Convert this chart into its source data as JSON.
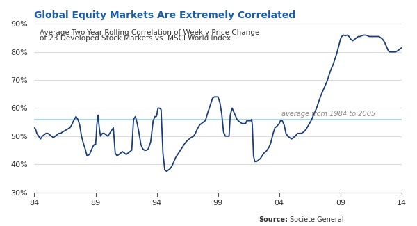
{
  "title": "Global Equity Markets Are Extremely Correlated",
  "title_color": "#1a5ca8",
  "annotation_line1": "Average Two-Year Rolling Correlation of Weekly Price Change",
  "annotation_line2": "of 23 Developed Stock Markets vs. MSCI World Index",
  "avg_label": "average from 1984 to 2005",
  "avg_value": 0.558,
  "line_color": "#1a3d7a",
  "avg_line_color": "#a8d8ea",
  "background_color": "#ffffff",
  "xlim": [
    1984,
    2014
  ],
  "ylim": [
    0.3,
    0.9
  ],
  "xtick_values": [
    1984,
    1989,
    1994,
    1999,
    2004,
    2009,
    2014
  ],
  "xtick_labels": [
    "84",
    "89",
    "94",
    "99",
    "04",
    "09",
    "14"
  ],
  "yticks": [
    0.3,
    0.4,
    0.5,
    0.6,
    0.7,
    0.8,
    0.9
  ],
  "ytick_labels": [
    "30%",
    "40%",
    "50%",
    "60%",
    "70%",
    "80%",
    "90%"
  ],
  "series_x": [
    1984.0,
    1984.1,
    1984.2,
    1984.35,
    1984.5,
    1984.65,
    1984.8,
    1984.95,
    1985.1,
    1985.25,
    1985.4,
    1985.55,
    1985.7,
    1985.85,
    1986.0,
    1986.15,
    1986.3,
    1986.5,
    1986.7,
    1986.9,
    1987.05,
    1987.2,
    1987.4,
    1987.55,
    1987.7,
    1987.85,
    1988.0,
    1988.15,
    1988.3,
    1988.5,
    1988.65,
    1988.8,
    1988.9,
    1988.98,
    1989.0,
    1989.05,
    1989.1,
    1989.2,
    1989.3,
    1989.4,
    1989.55,
    1989.7,
    1989.85,
    1990.0,
    1990.15,
    1990.3,
    1990.45,
    1990.6,
    1990.75,
    1990.9,
    1991.05,
    1991.2,
    1991.35,
    1991.5,
    1991.65,
    1991.8,
    1991.95,
    1992.1,
    1992.25,
    1992.4,
    1992.55,
    1992.7,
    1992.85,
    1993.0,
    1993.15,
    1993.3,
    1993.5,
    1993.7,
    1993.85,
    1993.95,
    1994.0,
    1994.05,
    1994.1,
    1994.2,
    1994.35,
    1994.5,
    1994.65,
    1994.8,
    1994.95,
    1995.1,
    1995.25,
    1995.4,
    1995.55,
    1995.7,
    1995.85,
    1996.0,
    1996.15,
    1996.3,
    1996.5,
    1996.65,
    1996.8,
    1997.0,
    1997.15,
    1997.3,
    1997.5,
    1997.65,
    1997.8,
    1997.95,
    1998.0,
    1998.1,
    1998.25,
    1998.4,
    1998.55,
    1998.7,
    1998.85,
    1999.0,
    1999.15,
    1999.3,
    1999.45,
    1999.6,
    1999.75,
    1999.9,
    2000.0,
    2000.15,
    2000.3,
    2000.45,
    2000.55,
    2000.65,
    2000.8,
    2000.95,
    2001.1,
    2001.25,
    2001.35,
    2001.45,
    2001.55,
    2001.7,
    2001.75,
    2001.8,
    2001.9,
    2002.0,
    2002.15,
    2002.3,
    2002.45,
    2002.6,
    2002.75,
    2002.9,
    2003.0,
    2003.15,
    2003.3,
    2003.5,
    2003.65,
    2003.8,
    2003.9,
    2004.0,
    2004.1,
    2004.25,
    2004.4,
    2004.55,
    2004.7,
    2004.85,
    2005.0,
    2005.15,
    2005.3,
    2005.5,
    2005.65,
    2005.8,
    2006.0,
    2006.2,
    2006.4,
    2006.6,
    2006.75,
    2006.9,
    2007.05,
    2007.2,
    2007.4,
    2007.6,
    2007.75,
    2007.9,
    2008.05,
    2008.2,
    2008.4,
    2008.55,
    2008.7,
    2008.85,
    2009.0,
    2009.1,
    2009.25,
    2009.4,
    2009.55,
    2009.7,
    2009.85,
    2010.0,
    2010.15,
    2010.3,
    2010.45,
    2010.6,
    2010.75,
    2010.9,
    2011.05,
    2011.2,
    2011.35,
    2011.5,
    2011.65,
    2011.8,
    2011.9,
    2012.0,
    2012.15,
    2012.3,
    2012.45,
    2012.6,
    2012.75,
    2012.9,
    2013.0,
    2013.15,
    2013.3,
    2013.5,
    2013.7,
    2013.85,
    2014.0
  ],
  "series_y": [
    0.53,
    0.525,
    0.51,
    0.5,
    0.49,
    0.5,
    0.505,
    0.51,
    0.51,
    0.505,
    0.5,
    0.495,
    0.5,
    0.505,
    0.51,
    0.51,
    0.515,
    0.52,
    0.525,
    0.53,
    0.54,
    0.555,
    0.57,
    0.56,
    0.54,
    0.5,
    0.475,
    0.455,
    0.43,
    0.435,
    0.45,
    0.465,
    0.47,
    0.47,
    0.47,
    0.5,
    0.54,
    0.575,
    0.53,
    0.5,
    0.51,
    0.51,
    0.505,
    0.5,
    0.51,
    0.52,
    0.53,
    0.44,
    0.43,
    0.435,
    0.44,
    0.445,
    0.44,
    0.435,
    0.44,
    0.445,
    0.45,
    0.56,
    0.57,
    0.545,
    0.51,
    0.47,
    0.455,
    0.45,
    0.45,
    0.455,
    0.48,
    0.555,
    0.57,
    0.57,
    0.575,
    0.59,
    0.6,
    0.6,
    0.595,
    0.44,
    0.38,
    0.375,
    0.38,
    0.385,
    0.395,
    0.41,
    0.425,
    0.435,
    0.445,
    0.455,
    0.465,
    0.475,
    0.485,
    0.49,
    0.495,
    0.5,
    0.51,
    0.525,
    0.54,
    0.545,
    0.55,
    0.555,
    0.56,
    0.575,
    0.595,
    0.615,
    0.635,
    0.64,
    0.64,
    0.64,
    0.62,
    0.58,
    0.515,
    0.5,
    0.5,
    0.5,
    0.575,
    0.6,
    0.585,
    0.57,
    0.56,
    0.555,
    0.55,
    0.545,
    0.545,
    0.545,
    0.555,
    0.555,
    0.555,
    0.555,
    0.56,
    0.54,
    0.43,
    0.41,
    0.41,
    0.415,
    0.42,
    0.43,
    0.44,
    0.445,
    0.45,
    0.46,
    0.475,
    0.51,
    0.53,
    0.535,
    0.54,
    0.545,
    0.555,
    0.555,
    0.54,
    0.51,
    0.5,
    0.495,
    0.49,
    0.495,
    0.5,
    0.51,
    0.51,
    0.51,
    0.515,
    0.525,
    0.54,
    0.555,
    0.57,
    0.585,
    0.6,
    0.62,
    0.645,
    0.665,
    0.68,
    0.695,
    0.715,
    0.735,
    0.755,
    0.775,
    0.795,
    0.82,
    0.845,
    0.855,
    0.86,
    0.858,
    0.86,
    0.855,
    0.845,
    0.84,
    0.845,
    0.85,
    0.855,
    0.855,
    0.858,
    0.86,
    0.86,
    0.858,
    0.855,
    0.855,
    0.855,
    0.855,
    0.855,
    0.855,
    0.855,
    0.85,
    0.845,
    0.835,
    0.82,
    0.805,
    0.8,
    0.8,
    0.8,
    0.8,
    0.805,
    0.81,
    0.815
  ]
}
